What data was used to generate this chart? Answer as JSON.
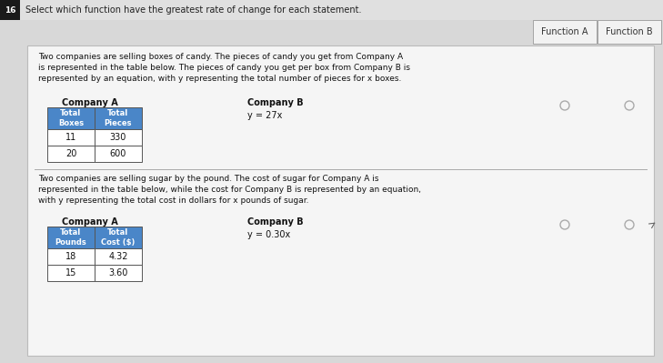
{
  "title": "Select which function have the greatest rate of change for each statement.",
  "question_number": "16",
  "header_function_a": "Function A",
  "header_function_b": "Function B",
  "problem1": {
    "description": "Two companies are selling boxes of candy. The pieces of candy you get from Company A\nis represented in the table below. The pieces of candy you get per box from Company B is\nrepresented by an equation, with y representing the total number of pieces for x boxes.",
    "company_a_label": "Company A",
    "company_b_label": "Company B",
    "company_b_equation": "y = 27x",
    "table_headers": [
      "Total\nBoxes",
      "Total\nPieces"
    ],
    "table_data": [
      [
        11,
        330
      ],
      [
        20,
        600
      ]
    ]
  },
  "problem2": {
    "description": "Two companies are selling sugar by the pound. The cost of sugar for Company A is\nrepresented in the table below, while the cost for Company B is represented by an equation,\nwith y representing the total cost in dollars for x pounds of sugar.",
    "company_a_label": "Company A",
    "company_b_label": "Company B",
    "company_b_equation": "y = 0.30x",
    "table_headers": [
      "Total\nPounds",
      "Total\nCost ($)"
    ],
    "table_data": [
      [
        18,
        "4.32"
      ],
      [
        15,
        "3.60"
      ]
    ]
  },
  "bg_color": "#d8d8d8",
  "card_color": "#e8e8e8",
  "table_header_color": "#4a86c8",
  "table_header_text_color": "#ffffff",
  "table_row_color": "#ffffff",
  "table_border_color": "#333333",
  "title_bar_color": "#e0e0e0",
  "number_box_color": "#1a1a1a",
  "number_box_text_color": "#ffffff",
  "col_a_bg": "#f0f0f0",
  "col_b_bg": "#f0f0f0",
  "radio_color": "#aaaaaa",
  "divider_color": "#aaaaaa"
}
